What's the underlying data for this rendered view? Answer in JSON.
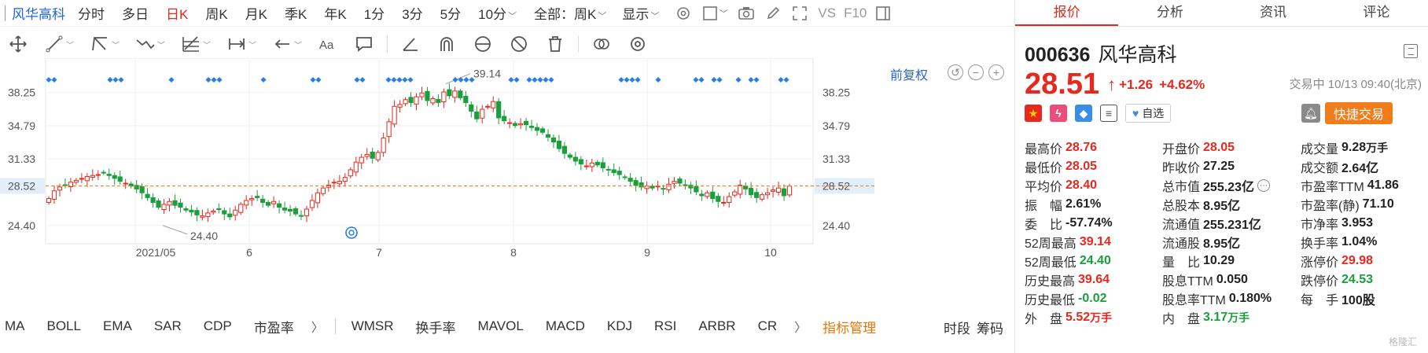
{
  "toolbar": {
    "stock_name": "风华高科",
    "periods": [
      "分时",
      "多日",
      "日K",
      "周K",
      "月K",
      "季K",
      "年K",
      "1分",
      "3分",
      "5分",
      "10分"
    ],
    "active_period": "日K",
    "range_select": "全部：周K",
    "display_label": "显示",
    "vs_label": "VS",
    "f10_label": "F10"
  },
  "chart": {
    "adjust_label": "前复权",
    "y_ticks": [
      "38.25",
      "34.79",
      "31.33",
      "28.52",
      "24.40"
    ],
    "x_ticks": [
      "2021/05",
      "6",
      "7",
      "8",
      "9",
      "10"
    ],
    "current_price_label": "28.52",
    "high_label": "39.14",
    "low_label": "24.40",
    "colors": {
      "up": "#e8281d",
      "down": "#1a9f3c",
      "current_line": "#f07d1a",
      "marker": "#2a7de1"
    }
  },
  "chart_data": {
    "type": "candlestick",
    "x_ticks": [
      "2021/05",
      "6",
      "7",
      "8",
      "9",
      "10"
    ],
    "ylim": [
      22.5,
      41.0
    ],
    "y_ticks": [
      24.4,
      28.52,
      31.33,
      34.79,
      38.25
    ],
    "current_price": 28.52,
    "high": 39.14,
    "low": 24.4,
    "close_series": [
      27.2,
      28.0,
      28.4,
      28.6,
      28.9,
      29.1,
      29.3,
      29.5,
      29.6,
      29.7,
      29.9,
      29.6,
      29.3,
      29.0,
      28.8,
      28.5,
      28.2,
      27.8,
      27.3,
      26.8,
      26.3,
      26.6,
      26.9,
      26.5,
      26.3,
      26.0,
      25.8,
      25.5,
      25.4,
      25.7,
      25.9,
      26.1,
      25.6,
      25.3,
      26.0,
      26.6,
      27.0,
      27.2,
      27.3,
      26.8,
      26.5,
      26.9,
      26.3,
      26.0,
      25.9,
      25.6,
      25.4,
      26.1,
      27.0,
      27.8,
      28.3,
      28.6,
      28.9,
      29.0,
      29.4,
      30.2,
      31.0,
      31.5,
      31.8,
      31.4,
      32.0,
      33.5,
      35.2,
      36.8,
      37.0,
      37.5,
      37.2,
      37.8,
      38.2,
      37.4,
      37.6,
      37.2,
      38.3,
      37.9,
      38.4,
      37.7,
      37.2,
      36.3,
      35.5,
      36.5,
      36.8,
      37.3,
      35.6,
      35.3,
      35.1,
      34.8,
      35.0,
      34.9,
      34.6,
      34.3,
      34.1,
      33.6,
      33.1,
      32.4,
      31.9,
      31.5,
      31.1,
      30.8,
      30.6,
      30.9,
      30.7,
      30.4,
      30.2,
      29.9,
      29.7,
      29.4,
      29.0,
      28.6,
      28.4,
      28.5,
      28.3,
      28.5,
      28.2,
      28.7,
      29.0,
      28.8,
      28.6,
      28.3,
      27.9,
      27.5,
      27.8,
      27.2,
      26.9,
      26.8,
      27.4,
      27.9,
      28.6,
      28.2,
      27.6,
      27.3,
      27.6,
      27.8,
      28.1,
      28.3,
      27.5,
      28.5
    ]
  },
  "draw_tools": [
    "move-tool-icon",
    "line-tool-icon",
    "channel-tool-icon",
    "wave-tool-icon",
    "fib-tool-icon",
    "range-tool-icon",
    "arrow-tool-icon",
    "text-tool-icon",
    "comment-tool-icon",
    "angle-tool-icon",
    "magnet-tool-icon",
    "eye-tool-icon",
    "hide-tool-icon",
    "delete-tool-icon",
    "compare-tool-icon",
    "settings-tool-icon"
  ],
  "indicators": {
    "group1": [
      "MA",
      "BOLL",
      "EMA",
      "SAR",
      "CDP",
      "市盈率"
    ],
    "group2": [
      "WMSR",
      "换手率",
      "MAVOL",
      "MACD",
      "KDJ",
      "RSI",
      "ARBR",
      "CR"
    ],
    "manager": "指标管理",
    "right1": "时段",
    "right2": "筹码"
  },
  "panel": {
    "tabs": [
      "报价",
      "分析",
      "资讯",
      "评论"
    ],
    "active_tab": "报价",
    "code": "000636",
    "name": "风华高科",
    "price": "28.51",
    "change": "+1.26",
    "change_pct": "+4.62%",
    "status": "交易中 10/13 09:40(北京)",
    "watch_label": "自选",
    "fast_trade": "快捷交易"
  },
  "stats": [
    [
      {
        "label": "最高价",
        "value": "28.76",
        "color": "red"
      },
      {
        "label": "开盘价",
        "value": "28.05",
        "color": "red"
      },
      {
        "label": "成交量",
        "value": "9.28",
        "unit": "万手",
        "color": ""
      }
    ],
    [
      {
        "label": "最低价",
        "value": "28.05",
        "color": "red"
      },
      {
        "label": "昨收价",
        "value": "27.25",
        "color": ""
      },
      {
        "label": "成交额",
        "value": "2.64亿",
        "color": ""
      }
    ],
    [
      {
        "label": "平均价",
        "value": "28.40",
        "color": "red"
      },
      {
        "label": "总市值",
        "value": "255.23亿",
        "color": ""
      },
      {
        "label": "市盈率TTM",
        "value": "41.86",
        "color": ""
      }
    ],
    [
      {
        "label": "振　幅",
        "value": "2.61%",
        "color": ""
      },
      {
        "label": "总股本",
        "value": "8.95亿",
        "color": ""
      },
      {
        "label": "市盈率(静)",
        "value": "71.10",
        "color": ""
      }
    ],
    [
      {
        "label": "委　比",
        "value": "-57.74%",
        "color": ""
      },
      {
        "label": "流通值",
        "value": "255.231亿",
        "color": ""
      },
      {
        "label": "市净率",
        "value": "3.953",
        "color": ""
      }
    ],
    [
      {
        "label": "52周最高",
        "value": "39.14",
        "color": "red"
      },
      {
        "label": "流通股",
        "value": "8.95亿",
        "color": ""
      },
      {
        "label": "换手率",
        "value": "1.04%",
        "color": ""
      }
    ],
    [
      {
        "label": "52周最低",
        "value": "24.40",
        "color": "green"
      },
      {
        "label": "量　比",
        "value": "10.29",
        "color": ""
      },
      {
        "label": "涨停价",
        "value": "29.98",
        "color": "red"
      }
    ],
    [
      {
        "label": "历史最高",
        "value": "39.64",
        "color": "red"
      },
      {
        "label": "股息TTM",
        "value": "0.050",
        "color": ""
      },
      {
        "label": "跌停价",
        "value": "24.53",
        "color": "green"
      }
    ],
    [
      {
        "label": "历史最低",
        "value": "-0.02",
        "color": "green"
      },
      {
        "label": "股息率TTM",
        "value": "0.180%",
        "color": ""
      },
      {
        "label": "每　手",
        "value": "100股",
        "color": ""
      }
    ],
    [
      {
        "label": "外　盘",
        "value": "5.52",
        "unit": "万手",
        "color": "red"
      },
      {
        "label": "内　盘",
        "value": "3.17",
        "unit": "万手",
        "color": "green"
      },
      null
    ]
  ],
  "watermark": "格隆汇"
}
